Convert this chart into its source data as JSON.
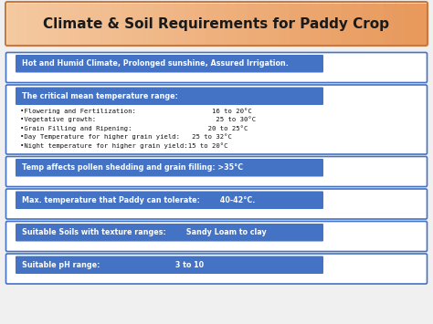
{
  "title": "Climate & Soil Requirements for Paddy Crop",
  "title_bg_light": "#F5C9A0",
  "title_bg_dark": "#E8985A",
  "title_color": "#1a1a1a",
  "bg_color": "#F0F0F0",
  "box_bg": "#4472C4",
  "box_text_color": "#FFFFFF",
  "outer_border_color": "#4472C4",
  "bullet_text_color": "#111111",
  "rows": [
    {
      "type": "simple",
      "label": "Hot and Humid Climate, Prolonged sunshine, Assured Irrigation."
    },
    {
      "type": "expanded",
      "label": "The critical mean temperature range:",
      "bullets": [
        "•Flowering and Fertilization:                   16 to 20°C",
        "•Vegetative growth:                              25 to 30°C",
        "•Grain Filling and Ripening:                   20 to 25°C",
        "•Day Temperature for higher grain yield:   25 to 32°C",
        "•Night temperature for higher grain yield:15 to 20°C"
      ]
    },
    {
      "type": "simple",
      "label": "Temp affects pollen shedding and grain filling: >35°C"
    },
    {
      "type": "simple",
      "label": "Max. temperature that Paddy can tolerate:        40-42°C."
    },
    {
      "type": "simple",
      "label": "Suitable Soils with texture ranges:        Sandy Loam to clay"
    },
    {
      "type": "simple",
      "label": "Suitable pH range:                              3 to 10"
    }
  ]
}
